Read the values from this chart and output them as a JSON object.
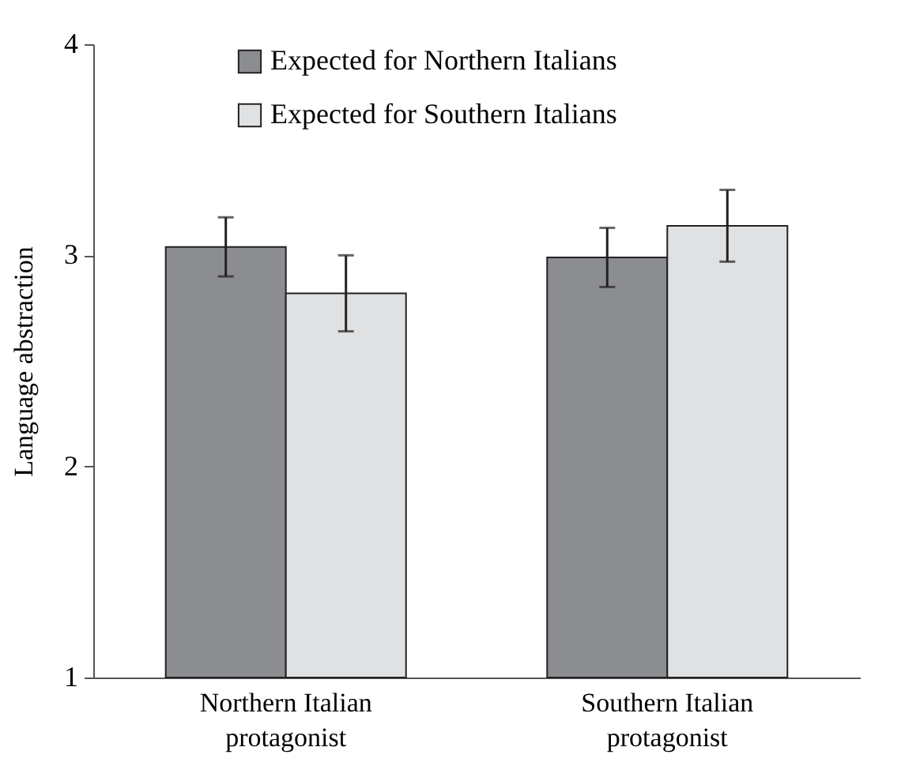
{
  "chart_data": {
    "type": "bar",
    "ylabel": "Language abstraction",
    "categories": [
      "Northern Italian\nprotagonist",
      "Southern Italian\nprotagonist"
    ],
    "series": [
      {
        "name": "Expected for Northern Italians",
        "color": "#8c8d91",
        "values": [
          3.04,
          2.99
        ],
        "errors": [
          0.14,
          0.14
        ]
      },
      {
        "name": "Expected for Southern Italians",
        "color": "#e0e1e3",
        "values": [
          2.82,
          3.14
        ],
        "errors": [
          0.18,
          0.17
        ]
      }
    ],
    "ylim": [
      1,
      4
    ],
    "yticks": [
      1,
      2,
      3,
      4
    ],
    "grid": false,
    "legend": "top"
  }
}
